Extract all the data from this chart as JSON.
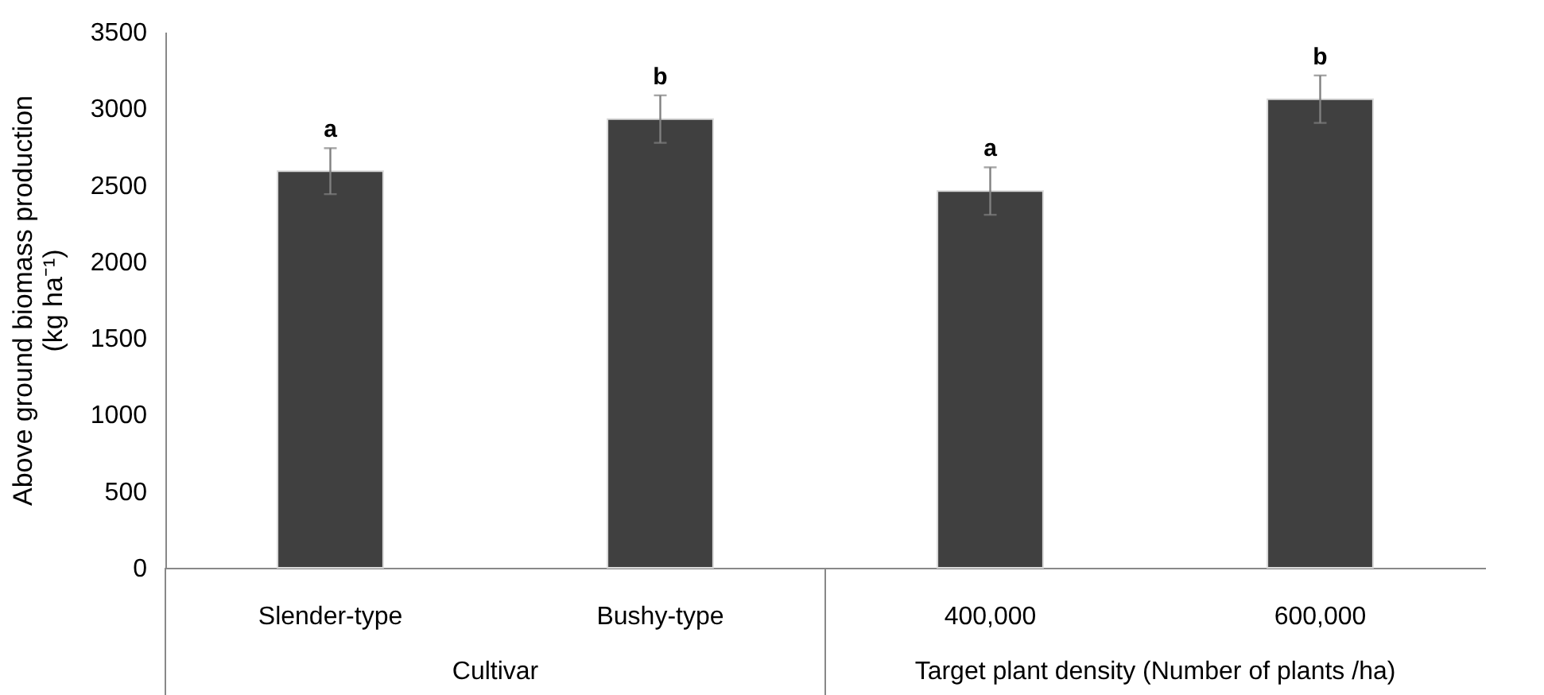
{
  "chart_data": {
    "type": "bar",
    "ylabel": "Above ground biomass production (kg ha⁻¹)",
    "categories": [
      "Slender-type",
      "Bushy-type",
      "400,000",
      "600,000"
    ],
    "values": [
      2590,
      2930,
      2460,
      3060
    ],
    "errors": [
      150,
      155,
      155,
      155
    ],
    "color": "#404040",
    "ylim": [
      0,
      3500
    ],
    "yticks": [
      0,
      500,
      1000,
      1500,
      2000,
      2500,
      3000,
      3500
    ],
    "grid": false,
    "annotations": [
      {
        "text": "a",
        "x": "Slender-type",
        "y": 2740
      },
      {
        "text": "b",
        "x": "Bushy-type",
        "y": 3085
      },
      {
        "text": "a",
        "x": "400,000",
        "y": 2615
      },
      {
        "text": "b",
        "x": "600,000",
        "y": 3215
      },
      "Cultivar",
      "Target plant density (Number of plants /ha)"
    ]
  }
}
